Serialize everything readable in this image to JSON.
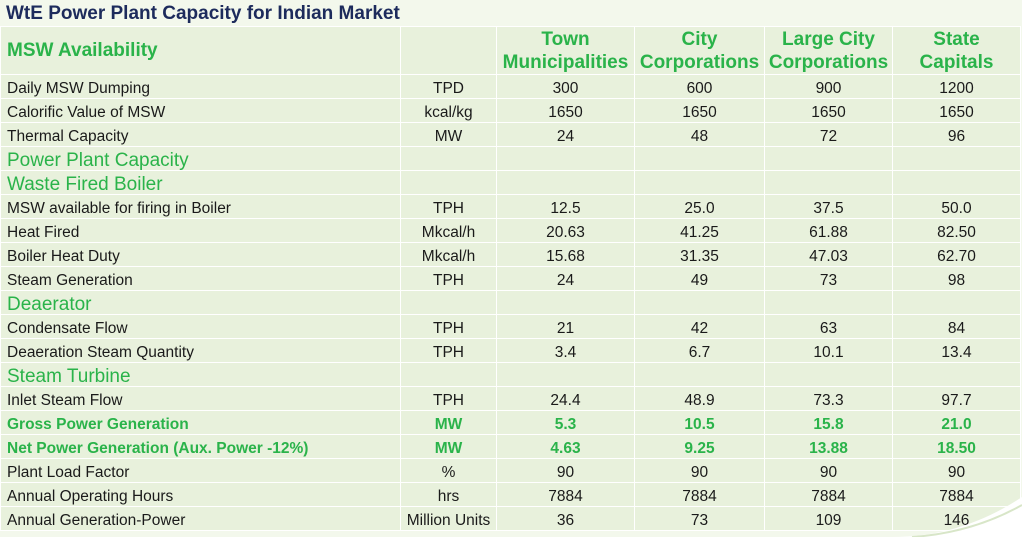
{
  "title": "WtE Power Plant Capacity for Indian Market",
  "header": {
    "label": "MSW Availability",
    "columns": [
      [
        "Town",
        "Municipalities"
      ],
      [
        "City",
        "Corporations"
      ],
      [
        "Large City",
        "Corporations"
      ],
      [
        "State",
        "Capitals"
      ]
    ]
  },
  "rows": [
    {
      "type": "data",
      "label": "Daily MSW Dumping",
      "unit": "TPD",
      "values": [
        "300",
        "600",
        "900",
        "1200"
      ]
    },
    {
      "type": "data",
      "label": "Calorific Value of MSW",
      "unit": "kcal/kg",
      "values": [
        "1650",
        "1650",
        "1650",
        "1650"
      ]
    },
    {
      "type": "data",
      "label": "Thermal Capacity",
      "unit": "MW",
      "values": [
        "24",
        "48",
        "72",
        "96"
      ]
    },
    {
      "type": "section",
      "label": "Power Plant Capacity"
    },
    {
      "type": "section",
      "label": "Waste Fired Boiler"
    },
    {
      "type": "data",
      "label": "MSW available for firing in Boiler",
      "unit": "TPH",
      "values": [
        "12.5",
        "25.0",
        "37.5",
        "50.0"
      ]
    },
    {
      "type": "data",
      "label": "Heat Fired",
      "unit": "Mkcal/h",
      "values": [
        "20.63",
        "41.25",
        "61.88",
        "82.50"
      ]
    },
    {
      "type": "data",
      "label": "Boiler Heat Duty",
      "unit": "Mkcal/h",
      "values": [
        "15.68",
        "31.35",
        "47.03",
        "62.70"
      ]
    },
    {
      "type": "data",
      "label": "Steam Generation",
      "unit": "TPH",
      "values": [
        "24",
        "49",
        "73",
        "98"
      ]
    },
    {
      "type": "section",
      "label": "Deaerator"
    },
    {
      "type": "data",
      "label": "Condensate Flow",
      "unit": "TPH",
      "values": [
        "21",
        "42",
        "63",
        "84"
      ]
    },
    {
      "type": "data",
      "label": "Deaeration Steam Quantity",
      "unit": "TPH",
      "values": [
        "3.4",
        "6.7",
        "10.1",
        "13.4"
      ]
    },
    {
      "type": "section",
      "label": "Steam Turbine"
    },
    {
      "type": "data",
      "label": "Inlet Steam Flow",
      "unit": "TPH",
      "values": [
        "24.4",
        "48.9",
        "73.3",
        "97.7"
      ]
    },
    {
      "type": "highlight",
      "label": "Gross Power Generation",
      "unit": "MW",
      "values": [
        "5.3",
        "10.5",
        "15.8",
        "21.0"
      ]
    },
    {
      "type": "highlight",
      "label": "Net Power Generation (Aux. Power -12%)",
      "unit": "MW",
      "values": [
        "4.63",
        "9.25",
        "13.88",
        "18.50"
      ]
    },
    {
      "type": "data",
      "label": "Plant Load Factor",
      "unit": "%",
      "values": [
        "90",
        "90",
        "90",
        "90"
      ]
    },
    {
      "type": "data",
      "label": "Annual Operating Hours",
      "unit": "hrs",
      "values": [
        "7884",
        "7884",
        "7884",
        "7884"
      ]
    },
    {
      "type": "data",
      "label": "Annual Generation-Power",
      "unit": "Million Units",
      "values": [
        "36",
        "73",
        "109",
        "146"
      ]
    }
  ],
  "colors": {
    "slide_background": "#f3f8ec",
    "cell_background": "#e8f1dc",
    "header_green": "#2ab34a",
    "title_navy": "#1d2b5c",
    "grid_line": "#ffffff"
  }
}
